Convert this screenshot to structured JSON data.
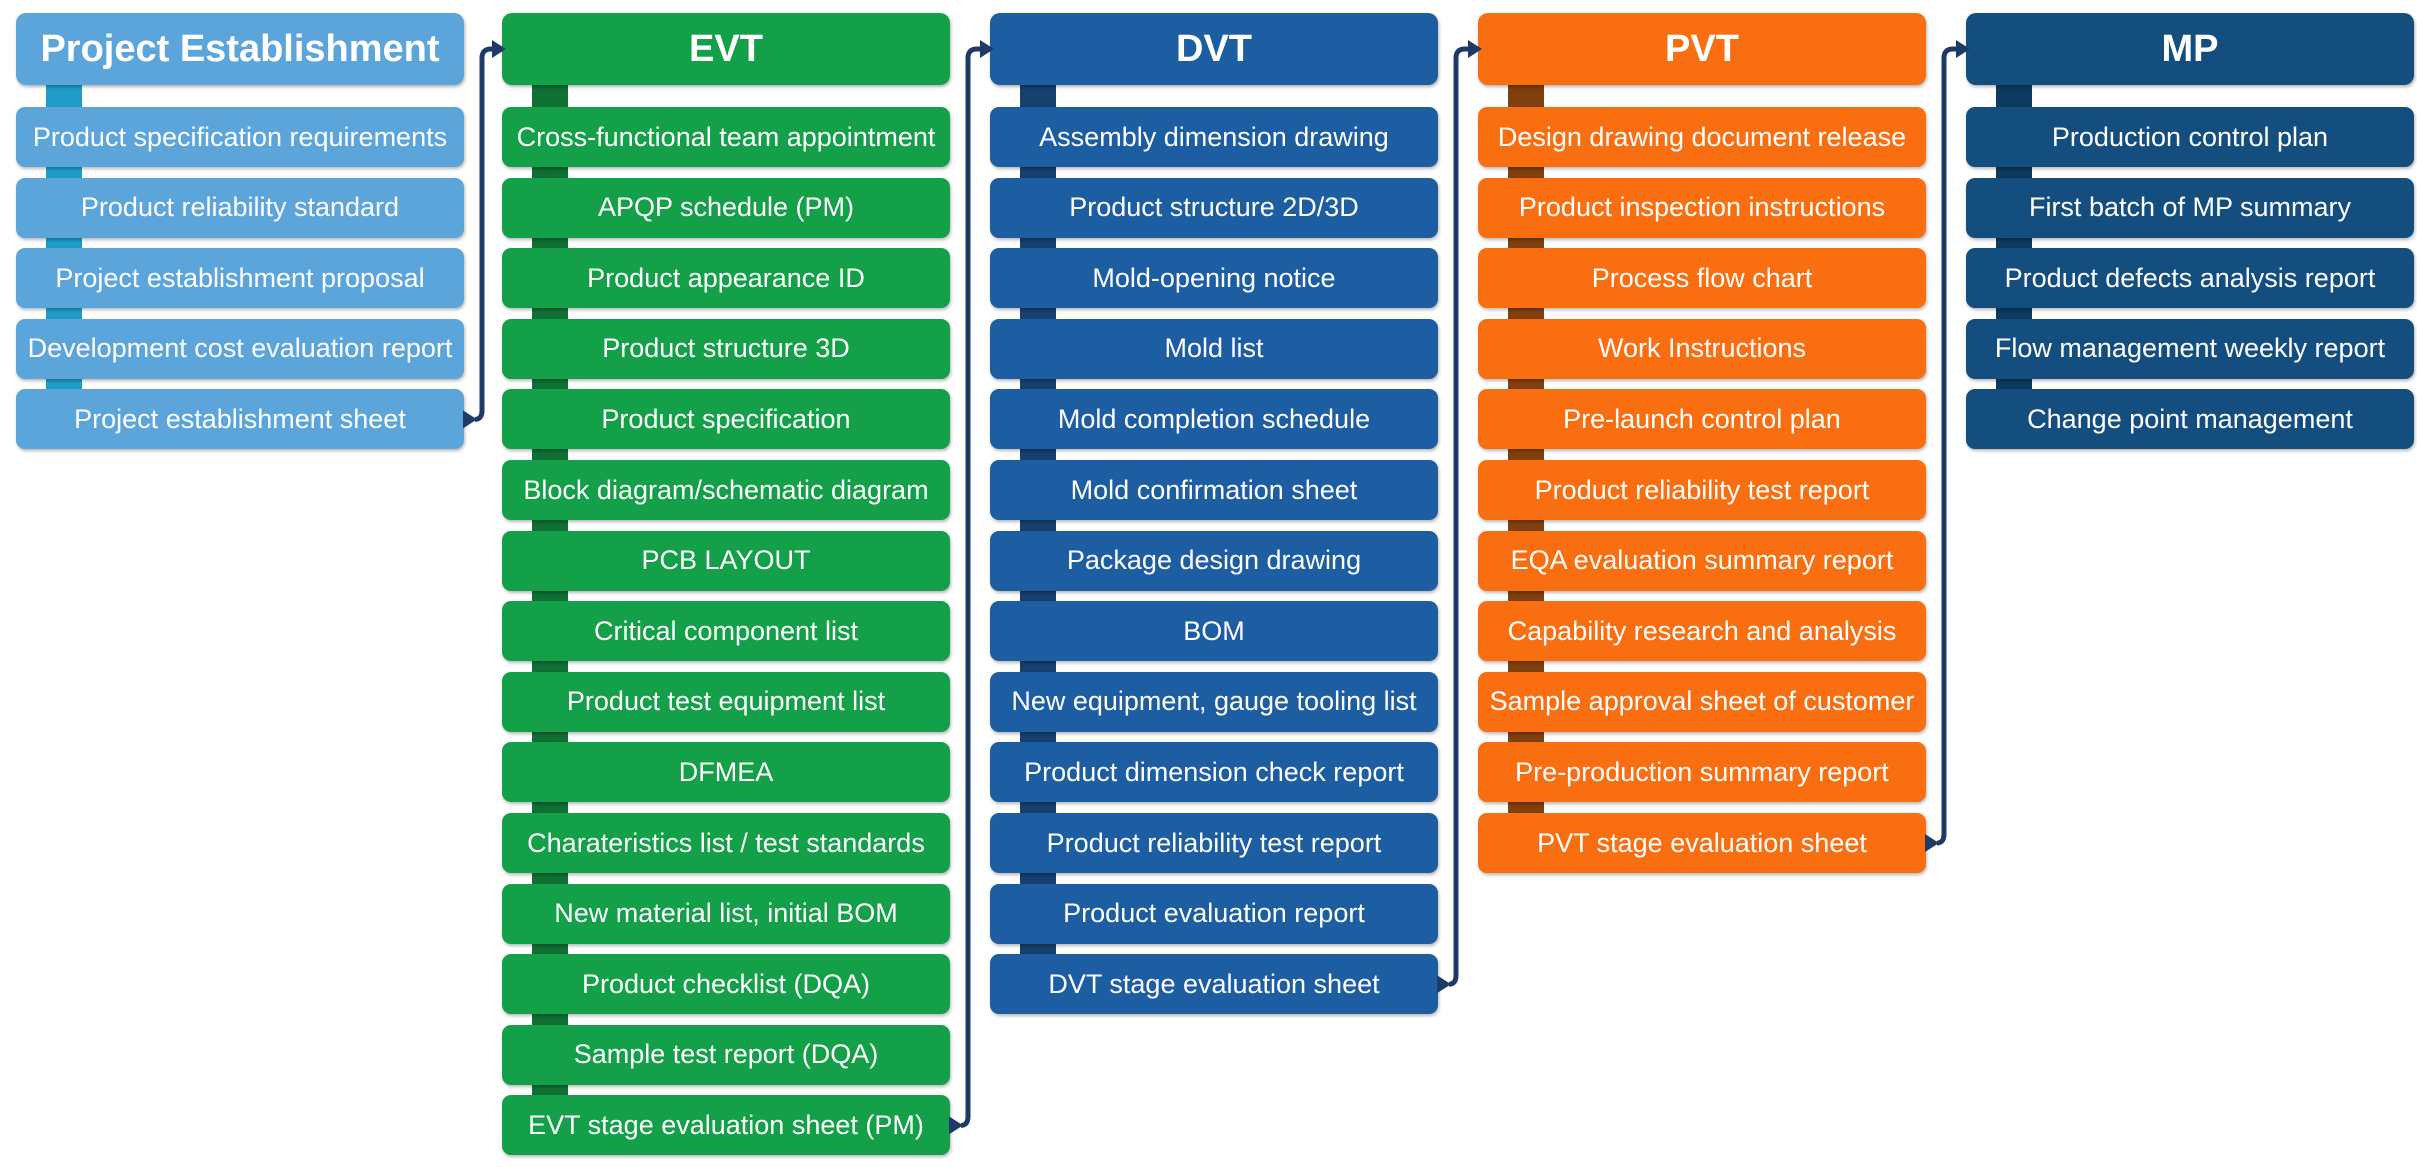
{
  "diagram": {
    "description_colors": {
      "background": "#FFFFFF",
      "connector_line": "#1E3A66",
      "text": "#FFFFFF"
    },
    "columns": [
      {
        "id": "project-establishment",
        "header": "Project Establishment",
        "color": "#5CA5DB",
        "tab_color": "#1E9DC9",
        "items": [
          "Product specification requirements",
          "Product reliability standard",
          "Project establishment proposal",
          "Development cost evaluation report",
          "Project establishment sheet"
        ]
      },
      {
        "id": "evt",
        "header": "EVT",
        "color": "#14A049",
        "tab_color": "#0F7034",
        "items": [
          "Cross-functional team appointment",
          "APQP schedule (PM)",
          "Product appearance ID",
          "Product structure 3D",
          "Product specification",
          "Block diagram/schematic diagram",
          "PCB LAYOUT",
          "Critical component list",
          "Product test equipment list",
          "DFMEA",
          "Charateristics list / test standards",
          "New material list, initial BOM",
          "Product checklist (DQA)",
          "Sample test report (DQA)",
          "EVT stage evaluation sheet (PM)"
        ]
      },
      {
        "id": "dvt",
        "header": "DVT",
        "color": "#1D5DA2",
        "tab_color": "#16406E",
        "items": [
          "Assembly dimension drawing",
          "Product structure 2D/3D",
          "Mold-opening notice",
          "Mold list",
          "Mold completion schedule",
          "Mold confirmation sheet",
          "Package design drawing",
          "BOM",
          "New equipment, gauge tooling list",
          "Product dimension check report",
          "Product reliability test report",
          "Product evaluation report",
          "DVT stage evaluation sheet"
        ]
      },
      {
        "id": "pvt",
        "header": "PVT",
        "color": "#F96E10",
        "tab_color": "#80400E",
        "items": [
          "Design drawing document release",
          "Product inspection instructions",
          "Process flow chart",
          "Work Instructions",
          "Pre-launch control plan",
          "Product reliability test report",
          "EQA evaluation summary report",
          "Capability research and analysis",
          "Sample approval sheet of customer",
          "Pre-production summary report",
          "PVT stage evaluation sheet"
        ]
      },
      {
        "id": "mp",
        "header": "MP",
        "color": "#134E7E",
        "tab_color": "#0D3A5F",
        "items": [
          "Production control plan",
          "First batch of MP summary",
          "Product defects analysis report",
          "Flow management weekly report",
          "Change point management"
        ]
      }
    ],
    "connectors": [
      {
        "from": "project-establishment",
        "to": "evt"
      },
      {
        "from": "evt",
        "to": "dvt"
      },
      {
        "from": "dvt",
        "to": "pvt"
      },
      {
        "from": "pvt",
        "to": "mp"
      }
    ]
  }
}
